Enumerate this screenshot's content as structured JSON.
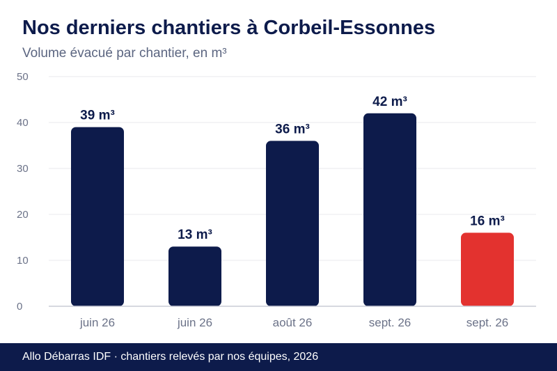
{
  "title": "Nos derniers chantiers à Corbeil-Essonnes",
  "subtitle": "Volume évacué par chantier, en m³",
  "footer": "Allo Débarras IDF · chantiers relevés par nos équipes, 2026",
  "colors": {
    "bar": "#0d1b4b",
    "highlight": "#e3322f",
    "grid": "#e8e9ee",
    "axis": "#c9cbd6",
    "tick": "#6b7288",
    "label": "#0d1b4b"
  },
  "chart_data": {
    "type": "bar",
    "categories": [
      "juin 26",
      "juin 26",
      "août 26",
      "sept. 26",
      "sept. 26"
    ],
    "values": [
      39,
      13,
      36,
      42,
      16
    ],
    "value_labels": [
      "39 m³",
      "13 m³",
      "36 m³",
      "42 m³",
      "16 m³"
    ],
    "highlight_index": 4,
    "ylim": [
      0,
      50
    ],
    "yticks": [
      0,
      10,
      20,
      30,
      40,
      50
    ],
    "unit": "m³",
    "grid": true,
    "legend": "none"
  }
}
